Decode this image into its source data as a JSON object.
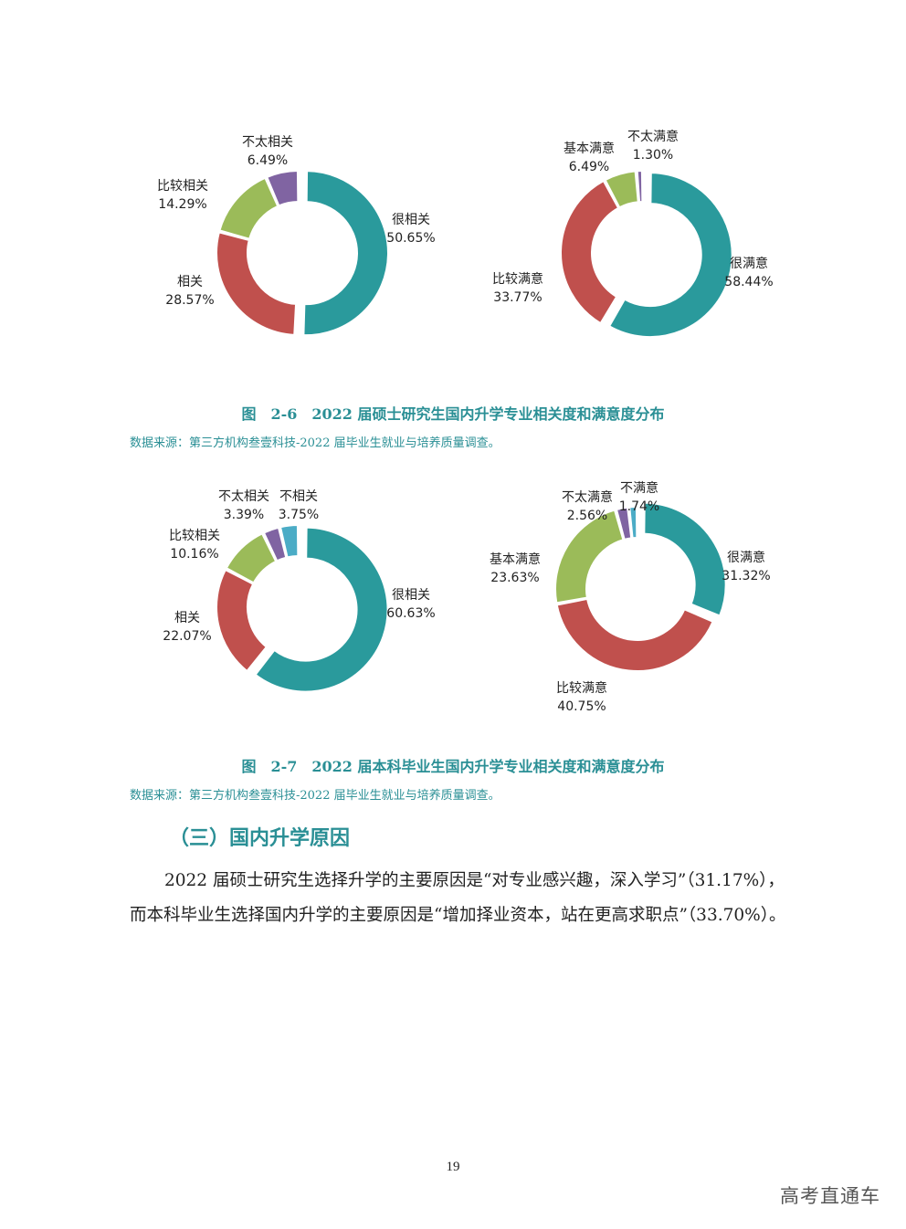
{
  "chart_data": [
    {
      "type": "donut",
      "slices": [
        {
          "label": "很相关",
          "value": 50.65,
          "display": "50.65%",
          "color": "#2a9a9c",
          "explode": true
        },
        {
          "label": "相关",
          "value": 28.57,
          "display": "28.57%",
          "color": "#c0504d"
        },
        {
          "label": "比较相关",
          "value": 14.29,
          "display": "14.29%",
          "color": "#9bbb59"
        },
        {
          "label": "不太相关",
          "value": 6.49,
          "display": "6.49%",
          "color": "#8064a2"
        }
      ]
    },
    {
      "type": "donut",
      "slices": [
        {
          "label": "很满意",
          "value": 58.44,
          "display": "58.44%",
          "color": "#2a9a9c",
          "explode": true
        },
        {
          "label": "比较满意",
          "value": 33.77,
          "display": "33.77%",
          "color": "#c0504d"
        },
        {
          "label": "基本满意",
          "value": 6.49,
          "display": "6.49%",
          "color": "#9bbb59"
        },
        {
          "label": "不太满意",
          "value": 1.3,
          "display": "1.30%",
          "color": "#8064a2"
        }
      ]
    },
    {
      "type": "donut",
      "slices": [
        {
          "label": "很相关",
          "value": 60.63,
          "display": "60.63%",
          "color": "#2a9a9c",
          "explode": true
        },
        {
          "label": "相关",
          "value": 22.07,
          "display": "22.07%",
          "color": "#c0504d"
        },
        {
          "label": "比较相关",
          "value": 10.16,
          "display": "10.16%",
          "color": "#9bbb59"
        },
        {
          "label": "不太相关",
          "value": 3.39,
          "display": "3.39%",
          "color": "#8064a2"
        },
        {
          "label": "不相关",
          "value": 3.75,
          "display": "3.75%",
          "color": "#4bacc6"
        }
      ]
    },
    {
      "type": "donut",
      "slices": [
        {
          "label": "很满意",
          "value": 31.32,
          "display": "31.32%",
          "color": "#2a9a9c",
          "explode": true
        },
        {
          "label": "比较满意",
          "value": 40.75,
          "display": "40.75%",
          "color": "#c0504d"
        },
        {
          "label": "基本满意",
          "value": 23.63,
          "display": "23.63%",
          "color": "#9bbb59"
        },
        {
          "label": "不太满意",
          "value": 2.56,
          "display": "2.56%",
          "color": "#8064a2"
        },
        {
          "label": "不满意",
          "value": 1.74,
          "display": "1.74%",
          "color": "#4bacc6"
        }
      ]
    }
  ],
  "figure_2_6": {
    "caption": "图　2-6　2022 届硕士研究生国内升学专业相关度和满意度分布",
    "source": "数据来源：第三方机构叁壹科技-2022 届毕业生就业与培养质量调查。"
  },
  "figure_2_7": {
    "caption": "图　2-7　2022 届本科毕业生国内升学专业相关度和满意度分布",
    "source": "数据来源：第三方机构叁壹科技-2022 届毕业生就业与培养质量调查。"
  },
  "section": {
    "heading": "（三）国内升学原因",
    "paragraph": "2022 届硕士研究生选择升学的主要原因是“对专业感兴趣，深入学习”（31.17%），而本科毕业生选择国内升学的主要原因是“增加择业资本，站在更高求职点”（33.70%）。"
  },
  "page_number": "19",
  "watermark": "高考直通车"
}
